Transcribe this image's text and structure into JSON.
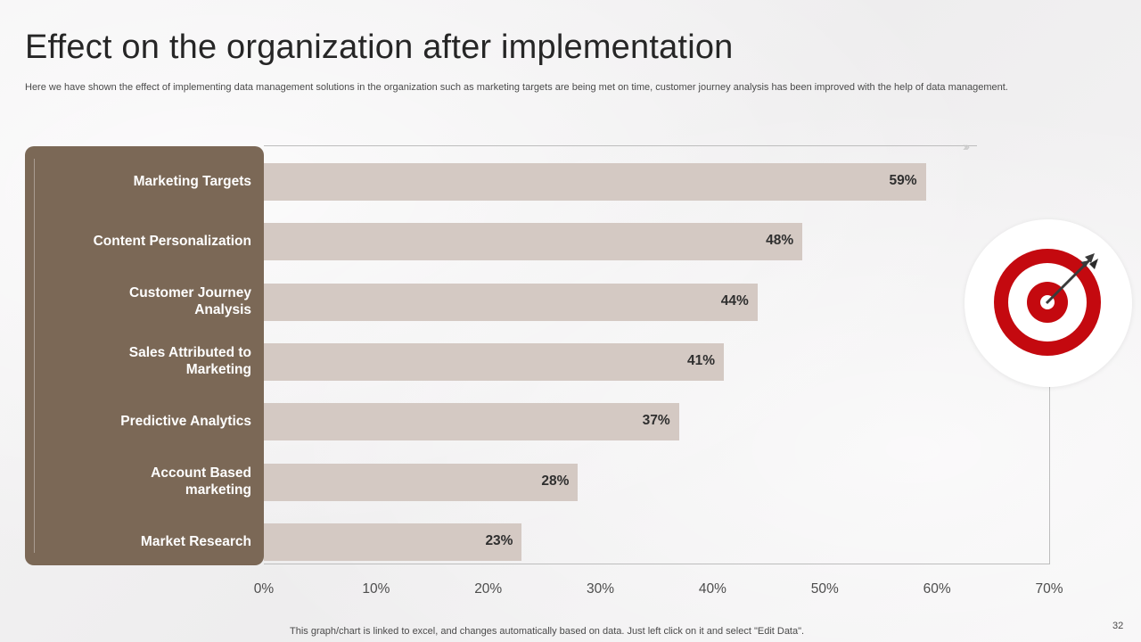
{
  "title": "Effect on the organization after implementation",
  "subtitle": "Here we have shown the effect of implementing data management solutions in the organization such as marketing targets are being met on time, customer journey analysis has been improved with the help of data management.",
  "footer_note": "This graph/chart is linked to excel,  and changes automatically based on data. Just left click on it and select \"Edit Data\".",
  "page_number": "32",
  "arrow_glyph": "›››",
  "colors": {
    "label_panel": "#7b6856",
    "bar": "#d4c9c3",
    "target_red": "#c4090f",
    "dart": "#3a3a3a"
  },
  "icons": {
    "target": "target-with-dart-icon"
  },
  "chart_data": {
    "type": "bar",
    "orientation": "horizontal",
    "categories": [
      [
        "Marketing Targets"
      ],
      [
        "Content Personalization"
      ],
      [
        "Customer Journey",
        "Analysis"
      ],
      [
        "Sales Attributed to",
        "Marketing"
      ],
      [
        "Predictive Analytics"
      ],
      [
        "Account Based",
        "marketing"
      ],
      [
        "Market Research"
      ]
    ],
    "values": [
      59,
      48,
      44,
      41,
      37,
      28,
      23
    ],
    "value_labels": [
      "59%",
      "48%",
      "44%",
      "41%",
      "37%",
      "28%",
      "23%"
    ],
    "xlim": [
      0,
      70
    ],
    "ticks": [
      0,
      10,
      20,
      30,
      40,
      50,
      60,
      70
    ],
    "tick_labels": [
      "0%",
      "10%",
      "20%",
      "30%",
      "40%",
      "50%",
      "60%",
      "70%"
    ],
    "title": "",
    "xlabel": "",
    "ylabel": "",
    "grid": false,
    "legend": "none"
  }
}
